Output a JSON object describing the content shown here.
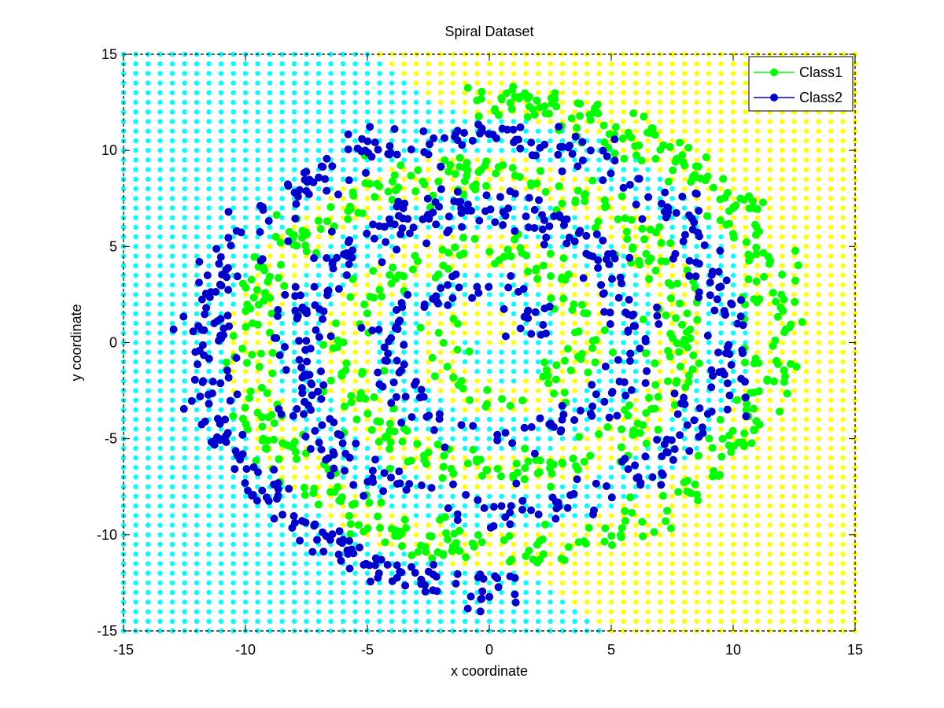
{
  "chart_data": {
    "type": "scatter",
    "title": "Spiral Dataset",
    "xlabel": "x coordinate",
    "ylabel": "y coordinate",
    "xlim": [
      -15,
      15
    ],
    "ylim": [
      -15,
      15
    ],
    "x_ticks": [
      -15,
      -10,
      -5,
      0,
      5,
      10,
      15
    ],
    "y_ticks": [
      -15,
      -10,
      -5,
      0,
      5,
      10,
      15
    ],
    "grid": false,
    "legend_position": "top-right",
    "background": {
      "description_kind": "decision-region dot grid",
      "spacing": 0.5,
      "class1_color": "#ffff00",
      "class2_color": "#00ffff"
    },
    "spiral": {
      "arms": 2,
      "radius_per_radian": 0.62,
      "theta_max": 20.5
    },
    "series": [
      {
        "name": "Class1",
        "color": "#00ff00",
        "point_count": 800
      },
      {
        "name": "Class2",
        "color": "#0000cc",
        "point_count": 800
      }
    ]
  }
}
